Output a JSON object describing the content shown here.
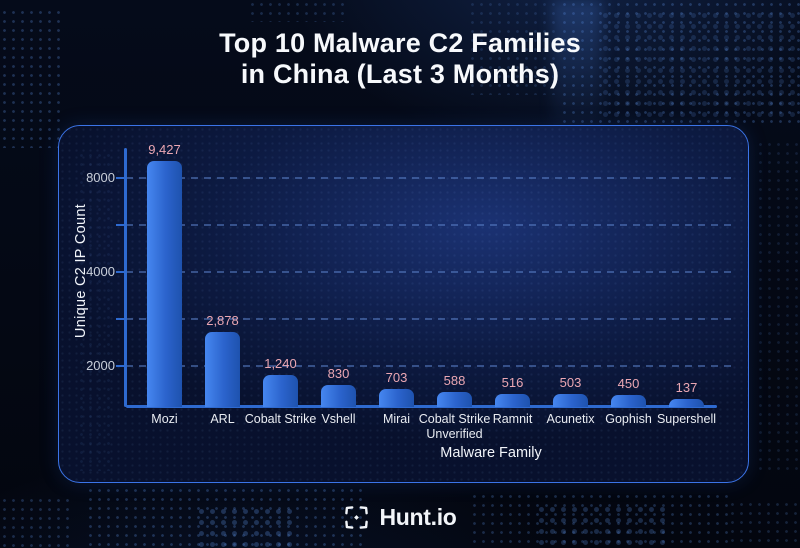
{
  "title": {
    "line1": "Top 10 Malware C2 Families",
    "line2": "in China (Last 3 Months)"
  },
  "chart_data": {
    "type": "bar",
    "title": "Top 10 Malware C2 Families in China (Last 3 Months)",
    "xlabel": "Malware Family",
    "ylabel": "Unique C2 IP Count",
    "categories": [
      "Mozi",
      "ARL",
      "Cobalt Strike",
      "Vshell",
      "Mirai",
      "Cobalt Strike Unverified",
      "Ramnit",
      "Acunetix",
      "Gophish",
      "Supershell"
    ],
    "values": [
      9427,
      2878,
      1240,
      830,
      703,
      588,
      516,
      503,
      450,
      137
    ],
    "value_labels": [
      "9,427",
      "2,878",
      "1,240",
      "830",
      "703",
      "588",
      "516",
      "503",
      "450",
      "137"
    ],
    "y_ticks": [
      2000,
      4000,
      8000
    ],
    "y_tick_labels": [
      "2000",
      "4000",
      "8000"
    ],
    "ylim": [
      0,
      10000
    ],
    "grid": "dashed horizontal gridlines",
    "legend": "none",
    "bar_color_start": "#4687f0",
    "bar_color_end": "#1e52ae",
    "value_label_color": "#eba7b3",
    "axis_color": "#2e6ad0"
  },
  "branding": {
    "logo_text": "Hunt.io",
    "logo_icon": "four-outward-arrows-icon"
  },
  "colors": {
    "background": "#040a16",
    "card_background": "#0f2050",
    "card_border": "#3b74e8",
    "title_text": "#f7f9fc",
    "tick_text": "#c9cfda"
  }
}
